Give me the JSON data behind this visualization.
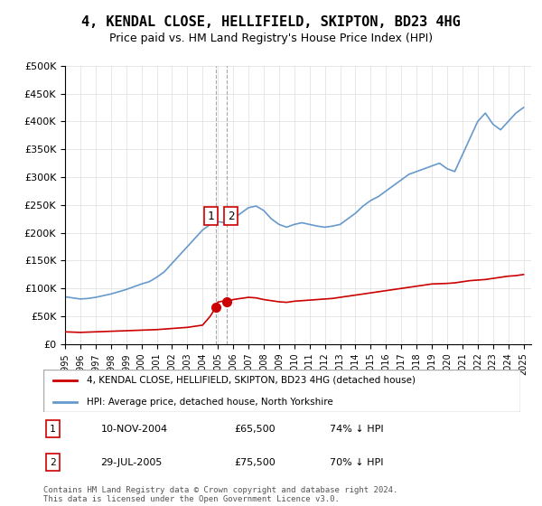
{
  "title": "4, KENDAL CLOSE, HELLIFIELD, SKIPTON, BD23 4HG",
  "subtitle": "Price paid vs. HM Land Registry's House Price Index (HPI)",
  "ylabel_ticks": [
    "£0",
    "£50K",
    "£100K",
    "£150K",
    "£200K",
    "£250K",
    "£300K",
    "£350K",
    "£400K",
    "£450K",
    "£500K"
  ],
  "ylim": [
    0,
    500000
  ],
  "xlim_start": 1995,
  "xlim_end": 2025.5,
  "red_line_color": "#cc0000",
  "blue_line_color": "#6699cc",
  "purchase1_date": 2004.86,
  "purchase1_price": 65500,
  "purchase2_date": 2005.57,
  "purchase2_price": 75500,
  "legend_label_red": "4, KENDAL CLOSE, HELLIFIELD, SKIPTON, BD23 4HG (detached house)",
  "legend_label_blue": "HPI: Average price, detached house, North Yorkshire",
  "table_rows": [
    {
      "num": "1",
      "date": "10-NOV-2004",
      "price": "£65,500",
      "pct": "74% ↓ HPI"
    },
    {
      "num": "2",
      "date": "29-JUL-2005",
      "price": "£75,500",
      "pct": "70% ↓ HPI"
    }
  ],
  "footer": "Contains HM Land Registry data © Crown copyright and database right 2024.\nThis data is licensed under the Open Government Licence v3.0.",
  "hpi_x": [
    1995,
    1995.5,
    1996,
    1996.5,
    1997,
    1997.5,
    1998,
    1998.5,
    1999,
    1999.5,
    2000,
    2000.5,
    2001,
    2001.5,
    2002,
    2002.5,
    2003,
    2003.5,
    2004,
    2004.5,
    2005,
    2005.5,
    2006,
    2006.5,
    2007,
    2007.5,
    2008,
    2008.5,
    2009,
    2009.5,
    2010,
    2010.5,
    2011,
    2011.5,
    2012,
    2012.5,
    2013,
    2013.5,
    2014,
    2014.5,
    2015,
    2015.5,
    2016,
    2016.5,
    2017,
    2017.5,
    2018,
    2018.5,
    2019,
    2019.5,
    2020,
    2020.5,
    2021,
    2021.5,
    2022,
    2022.5,
    2023,
    2023.5,
    2024,
    2024.5,
    2025
  ],
  "hpi_y": [
    85000,
    83000,
    81000,
    82000,
    84000,
    87000,
    90000,
    94000,
    98000,
    103000,
    108000,
    112000,
    120000,
    130000,
    145000,
    160000,
    175000,
    190000,
    205000,
    215000,
    220000,
    218000,
    225000,
    235000,
    245000,
    248000,
    240000,
    225000,
    215000,
    210000,
    215000,
    218000,
    215000,
    212000,
    210000,
    212000,
    215000,
    225000,
    235000,
    248000,
    258000,
    265000,
    275000,
    285000,
    295000,
    305000,
    310000,
    315000,
    320000,
    325000,
    315000,
    310000,
    340000,
    370000,
    400000,
    415000,
    395000,
    385000,
    400000,
    415000,
    425000
  ],
  "red_x": [
    1995,
    1995.5,
    1996,
    1996.5,
    1997,
    1997.5,
    1998,
    1998.5,
    1999,
    1999.5,
    2000,
    2000.5,
    2001,
    2001.5,
    2002,
    2002.5,
    2003,
    2003.5,
    2004,
    2004.5,
    2004.86,
    2005,
    2005.5,
    2005.57,
    2006,
    2006.5,
    2007,
    2007.5,
    2008,
    2008.5,
    2009,
    2009.5,
    2010,
    2010.5,
    2011,
    2011.5,
    2012,
    2012.5,
    2013,
    2013.5,
    2014,
    2014.5,
    2015,
    2015.5,
    2016,
    2016.5,
    2017,
    2017.5,
    2018,
    2018.5,
    2019,
    2019.5,
    2020,
    2020.5,
    2021,
    2021.5,
    2022,
    2022.5,
    2023,
    2023.5,
    2024,
    2024.5,
    2025
  ],
  "red_y": [
    22000,
    21500,
    21000,
    21500,
    22000,
    22500,
    23000,
    23500,
    24000,
    24500,
    25000,
    25500,
    26000,
    27000,
    28000,
    29000,
    30000,
    32000,
    34000,
    50000,
    65500,
    75500,
    78000,
    75500,
    80000,
    82000,
    84000,
    83000,
    80000,
    78000,
    76000,
    75000,
    77000,
    78000,
    79000,
    80000,
    81000,
    82000,
    84000,
    86000,
    88000,
    90000,
    92000,
    94000,
    96000,
    98000,
    100000,
    102000,
    104000,
    106000,
    108000,
    108500,
    109000,
    110000,
    112000,
    114000,
    115000,
    116000,
    118000,
    120000,
    122000,
    123000,
    125000
  ]
}
